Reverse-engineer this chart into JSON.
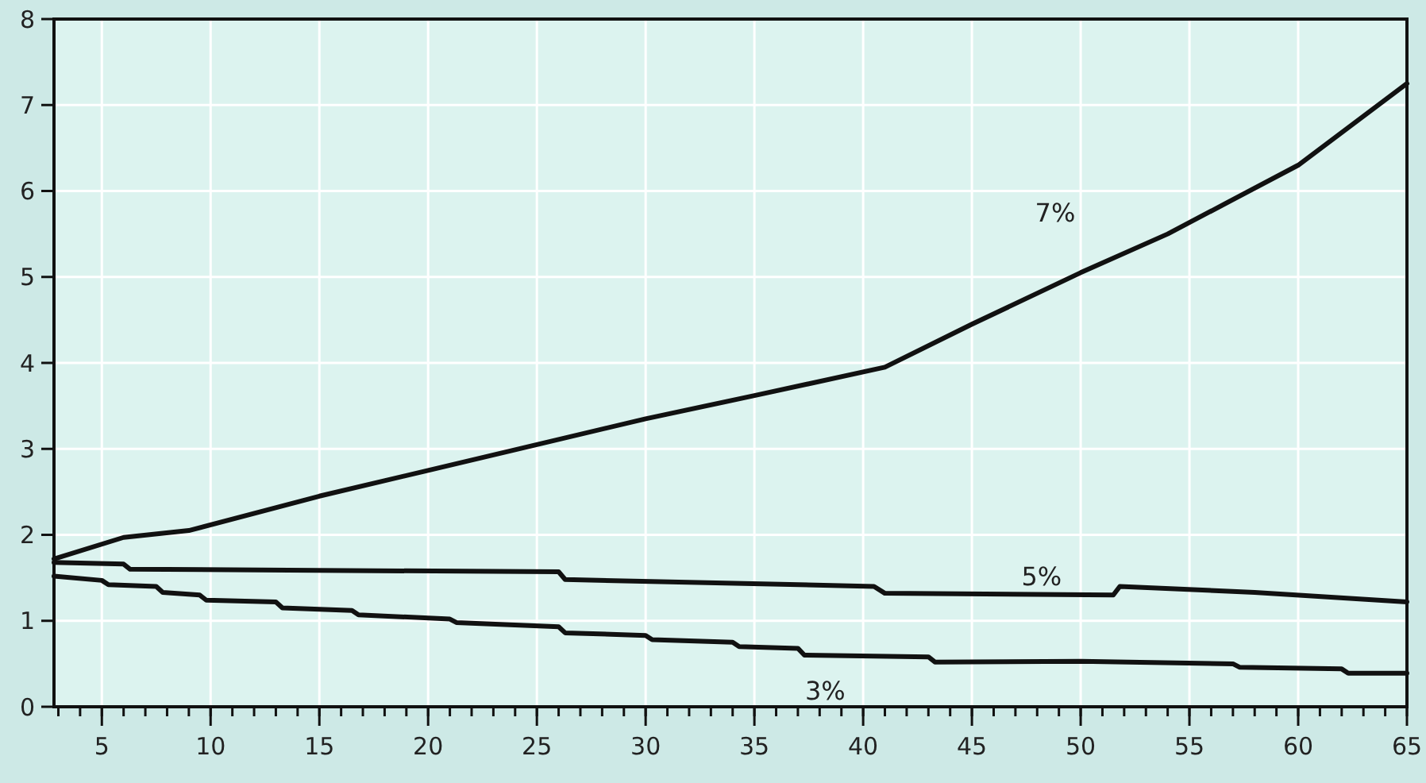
{
  "chart_data": {
    "type": "line",
    "xlim": [
      2.8,
      65
    ],
    "ylim": [
      0,
      8
    ],
    "xticks": [
      5,
      10,
      15,
      20,
      25,
      30,
      35,
      40,
      45,
      50,
      55,
      60,
      65
    ],
    "yticks": [
      0,
      1,
      2,
      3,
      4,
      5,
      6,
      7,
      8
    ],
    "grid": true,
    "series": [
      {
        "name": "7%",
        "color": "#111111",
        "x": [
          2.8,
          6,
          9,
          15,
          20,
          25,
          30,
          35,
          41,
          45,
          50,
          54,
          60,
          65
        ],
        "values": [
          1.72,
          1.97,
          2.05,
          2.45,
          2.75,
          3.05,
          3.35,
          3.62,
          3.95,
          4.45,
          5.05,
          5.5,
          6.3,
          7.25
        ]
      },
      {
        "name": "5%",
        "color": "#111111",
        "x": [
          2.8,
          6,
          6.3,
          26,
          26.3,
          40.5,
          41,
          51.5,
          51.8,
          58,
          65
        ],
        "values": [
          1.68,
          1.66,
          1.6,
          1.57,
          1.48,
          1.4,
          1.32,
          1.3,
          1.4,
          1.33,
          1.22
        ]
      },
      {
        "name": "3%",
        "color": "#111111",
        "x": [
          2.8,
          5,
          5.3,
          7.5,
          7.8,
          9.5,
          9.8,
          13,
          13.3,
          16.5,
          16.8,
          21,
          21.3,
          26,
          26.3,
          30,
          30.3,
          34,
          34.3,
          37,
          37.3,
          43,
          43.3,
          50,
          57,
          57.3,
          62,
          62.3,
          65
        ],
        "values": [
          1.52,
          1.47,
          1.42,
          1.4,
          1.33,
          1.3,
          1.24,
          1.22,
          1.15,
          1.12,
          1.07,
          1.02,
          0.98,
          0.93,
          0.86,
          0.83,
          0.78,
          0.75,
          0.7,
          0.68,
          0.6,
          0.58,
          0.52,
          0.53,
          0.5,
          0.46,
          0.44,
          0.39,
          0.39
        ]
      }
    ]
  }
}
